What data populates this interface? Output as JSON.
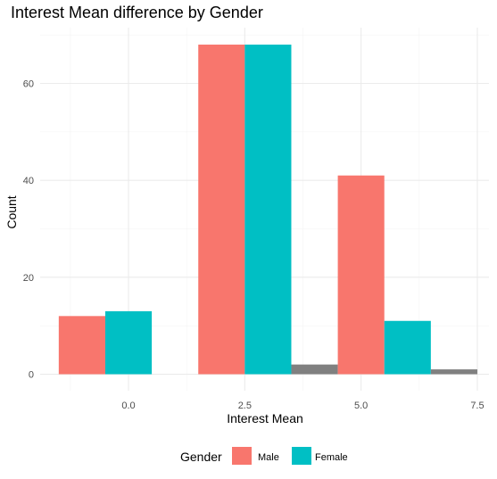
{
  "chart_data": {
    "type": "bar",
    "title": "Interest Mean difference by Gender",
    "xlabel": "Interest Mean",
    "ylabel": "Count",
    "xlim": [
      -1.9,
      7.75
    ],
    "ylim": [
      -3.4,
      71.5
    ],
    "x_ticks": [
      0.0,
      2.5,
      5.0,
      7.5
    ],
    "x_tick_labels": [
      "0.0",
      "2.5",
      "5.0",
      "7.5"
    ],
    "y_ticks": [
      0,
      20,
      40,
      60
    ],
    "y_tick_labels": [
      "0",
      "20",
      "40",
      "60"
    ],
    "grid": true,
    "bin_width": 3,
    "bars": [
      {
        "x_start": -1.5,
        "x_end": -0.5,
        "value": 12,
        "series": "Male"
      },
      {
        "x_start": -0.5,
        "x_end": 0.5,
        "value": 13,
        "series": "Female"
      },
      {
        "x_start": 1.5,
        "x_end": 2.5,
        "value": 68,
        "series": "Male"
      },
      {
        "x_start": 2.5,
        "x_end": 3.5,
        "value": 68,
        "series": "Female"
      },
      {
        "x_start": 3.5,
        "x_end": 4.5,
        "value": 2,
        "series": "NA"
      },
      {
        "x_start": 4.5,
        "x_end": 5.5,
        "value": 41,
        "series": "Male"
      },
      {
        "x_start": 5.5,
        "x_end": 6.5,
        "value": 11,
        "series": "Female"
      },
      {
        "x_start": 6.5,
        "x_end": 7.5,
        "value": 1,
        "series": "NA"
      }
    ],
    "series": [
      {
        "name": "Male",
        "color": "#F8766D"
      },
      {
        "name": "Female",
        "color": "#00BFC4"
      },
      {
        "name": "",
        "color": "#808080"
      }
    ],
    "legend": {
      "title": "Gender",
      "position": "bottom",
      "entries": [
        {
          "label": "Male",
          "color": "#F8766D"
        },
        {
          "label": "Female",
          "color": "#00BFC4"
        }
      ]
    },
    "colors": {
      "background": "#FFFFFF",
      "grid_major": "#EBEBEB",
      "grid_minor": "#F4F4F4",
      "tick_text": "#4D4D4D",
      "na_bar": "#808080"
    }
  }
}
